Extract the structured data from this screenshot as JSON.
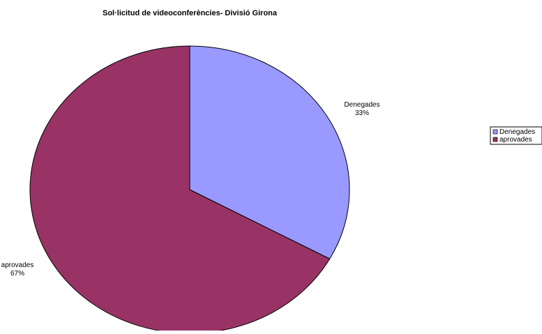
{
  "chart_data": {
    "type": "pie",
    "title": "Sol·licitud de videoconferències- Divisió Girona",
    "legend_position": "right",
    "start_angle": "12 o'clock",
    "direction": "clockwise",
    "slices": [
      {
        "name": "Denegades",
        "value": 33,
        "label": "Denegades",
        "percent_label": "33%",
        "color": "#9999ff"
      },
      {
        "name": "aprovades",
        "value": 67,
        "label": "aprovades",
        "percent_label": "67%",
        "color": "#993366"
      }
    ],
    "stroke_color": "#000000"
  }
}
